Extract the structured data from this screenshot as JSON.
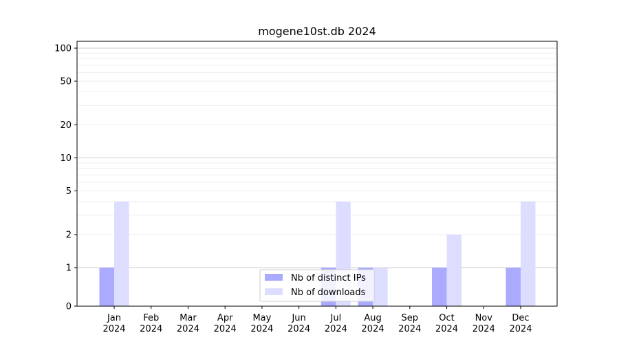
{
  "chart_data": {
    "type": "bar",
    "title": "mogene10st.db 2024",
    "xlabel": "",
    "ylabel": "",
    "yscale": "symlog",
    "ylim": [
      0,
      120
    ],
    "grid": "horizontal",
    "legend_position": "bottom-center",
    "categories": [
      [
        "Jan",
        "2024"
      ],
      [
        "Feb",
        "2024"
      ],
      [
        "Mar",
        "2024"
      ],
      [
        "Apr",
        "2024"
      ],
      [
        "May",
        "2024"
      ],
      [
        "Jun",
        "2024"
      ],
      [
        "Jul",
        "2024"
      ],
      [
        "Aug",
        "2024"
      ],
      [
        "Sep",
        "2024"
      ],
      [
        "Oct",
        "2024"
      ],
      [
        "Nov",
        "2024"
      ],
      [
        "Dec",
        "2024"
      ]
    ],
    "yticks": [
      {
        "value": 0,
        "label": "0"
      },
      {
        "value": 1,
        "label": "1"
      },
      {
        "value": 2,
        "label": "2"
      },
      {
        "value": 5,
        "label": "5"
      },
      {
        "value": 10,
        "label": "10"
      },
      {
        "value": 20,
        "label": "20"
      },
      {
        "value": 50,
        "label": "50"
      },
      {
        "value": 100,
        "label": "100"
      }
    ],
    "series": [
      {
        "name": "Nb of distinct IPs",
        "color": "#aaaaff",
        "values": [
          1,
          0,
          0,
          0,
          0,
          0,
          1,
          1,
          0,
          1,
          0,
          1
        ]
      },
      {
        "name": "Nb of downloads",
        "color": "#ddddff",
        "values": [
          4,
          0,
          0,
          0,
          0,
          0,
          4,
          1,
          0,
          2,
          0,
          4
        ]
      }
    ]
  }
}
